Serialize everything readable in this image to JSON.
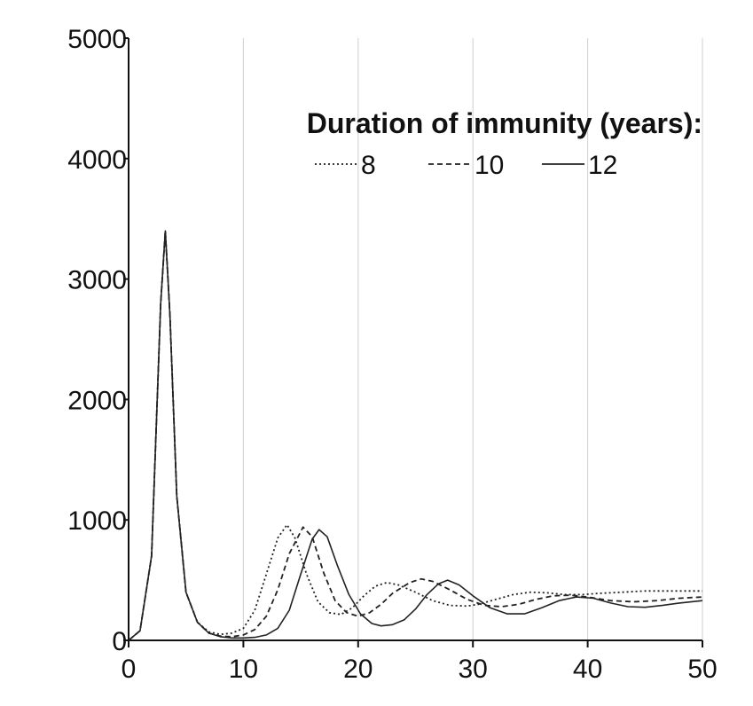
{
  "chart_data": {
    "type": "line",
    "title": "",
    "xlabel": "",
    "ylabel": "",
    "xlim": [
      0,
      50
    ],
    "ylim": [
      0,
      5000
    ],
    "x_ticks": [
      "0",
      "10",
      "20",
      "30",
      "40",
      "50"
    ],
    "y_ticks": [
      "0",
      "1000",
      "2000",
      "3000",
      "4000",
      "5000"
    ],
    "grid": "vertical",
    "legend": {
      "title": "Duration of immunity (years):",
      "placement": "top-right"
    },
    "series": [
      {
        "name": "8",
        "style": "dotted",
        "color": "#222222",
        "points": [
          [
            0,
            0
          ],
          [
            1,
            80
          ],
          [
            2,
            700
          ],
          [
            2.8,
            2800
          ],
          [
            3.2,
            3400
          ],
          [
            3.6,
            2700
          ],
          [
            4.2,
            1200
          ],
          [
            5,
            400
          ],
          [
            6,
            150
          ],
          [
            7,
            70
          ],
          [
            8,
            50
          ],
          [
            9,
            60
          ],
          [
            10,
            100
          ],
          [
            11,
            250
          ],
          [
            12,
            550
          ],
          [
            13,
            850
          ],
          [
            13.8,
            960
          ],
          [
            14.5,
            850
          ],
          [
            15.5,
            550
          ],
          [
            16.5,
            320
          ],
          [
            17.5,
            230
          ],
          [
            18.5,
            215
          ],
          [
            19.5,
            270
          ],
          [
            20.5,
            370
          ],
          [
            21.5,
            450
          ],
          [
            22.5,
            480
          ],
          [
            23.5,
            460
          ],
          [
            25,
            400
          ],
          [
            26.5,
            330
          ],
          [
            28,
            290
          ],
          [
            29.5,
            285
          ],
          [
            30.5,
            300
          ],
          [
            32,
            340
          ],
          [
            33.5,
            380
          ],
          [
            35,
            400
          ],
          [
            36.5,
            395
          ],
          [
            38,
            380
          ],
          [
            39.5,
            380
          ],
          [
            41,
            390
          ],
          [
            43,
            400
          ],
          [
            45,
            410
          ],
          [
            47,
            410
          ],
          [
            50,
            410
          ]
        ]
      },
      {
        "name": "10",
        "style": "dashed",
        "color": "#222222",
        "points": [
          [
            0,
            0
          ],
          [
            1,
            80
          ],
          [
            2,
            700
          ],
          [
            2.8,
            2800
          ],
          [
            3.2,
            3400
          ],
          [
            3.6,
            2700
          ],
          [
            4.2,
            1200
          ],
          [
            5,
            400
          ],
          [
            6,
            150
          ],
          [
            7,
            60
          ],
          [
            8,
            35
          ],
          [
            9,
            30
          ],
          [
            10,
            45
          ],
          [
            11,
            90
          ],
          [
            12,
            200
          ],
          [
            13,
            420
          ],
          [
            14,
            720
          ],
          [
            15.2,
            940
          ],
          [
            16,
            860
          ],
          [
            17,
            560
          ],
          [
            18,
            330
          ],
          [
            19,
            230
          ],
          [
            20,
            200
          ],
          [
            21,
            230
          ],
          [
            22,
            300
          ],
          [
            23,
            390
          ],
          [
            24.5,
            480
          ],
          [
            25.5,
            510
          ],
          [
            26.5,
            490
          ],
          [
            28,
            420
          ],
          [
            29.5,
            340
          ],
          [
            31,
            290
          ],
          [
            32.5,
            280
          ],
          [
            34,
            300
          ],
          [
            35.5,
            340
          ],
          [
            37,
            370
          ],
          [
            38.5,
            375
          ],
          [
            40,
            360
          ],
          [
            42,
            330
          ],
          [
            44,
            320
          ],
          [
            46,
            330
          ],
          [
            48,
            350
          ],
          [
            50,
            360
          ]
        ]
      },
      {
        "name": "12",
        "style": "solid",
        "color": "#222222",
        "points": [
          [
            0,
            0
          ],
          [
            1,
            80
          ],
          [
            2,
            700
          ],
          [
            2.8,
            2800
          ],
          [
            3.2,
            3400
          ],
          [
            3.6,
            2700
          ],
          [
            4.2,
            1200
          ],
          [
            5,
            400
          ],
          [
            6,
            150
          ],
          [
            7,
            60
          ],
          [
            8,
            30
          ],
          [
            9,
            20
          ],
          [
            10,
            20
          ],
          [
            11,
            25
          ],
          [
            12,
            45
          ],
          [
            13,
            100
          ],
          [
            14,
            250
          ],
          [
            15,
            550
          ],
          [
            16,
            840
          ],
          [
            16.6,
            920
          ],
          [
            17.3,
            860
          ],
          [
            18.2,
            620
          ],
          [
            19.2,
            380
          ],
          [
            20.2,
            220
          ],
          [
            21.2,
            140
          ],
          [
            22,
            120
          ],
          [
            23,
            130
          ],
          [
            24,
            170
          ],
          [
            25,
            260
          ],
          [
            26,
            380
          ],
          [
            27,
            470
          ],
          [
            27.8,
            500
          ],
          [
            28.8,
            460
          ],
          [
            30,
            370
          ],
          [
            31.5,
            270
          ],
          [
            33,
            220
          ],
          [
            34.5,
            220
          ],
          [
            36,
            270
          ],
          [
            37.5,
            330
          ],
          [
            39,
            360
          ],
          [
            40.5,
            350
          ],
          [
            42,
            310
          ],
          [
            43.5,
            280
          ],
          [
            45,
            275
          ],
          [
            46.5,
            290
          ],
          [
            48,
            310
          ],
          [
            50,
            330
          ]
        ]
      }
    ]
  }
}
